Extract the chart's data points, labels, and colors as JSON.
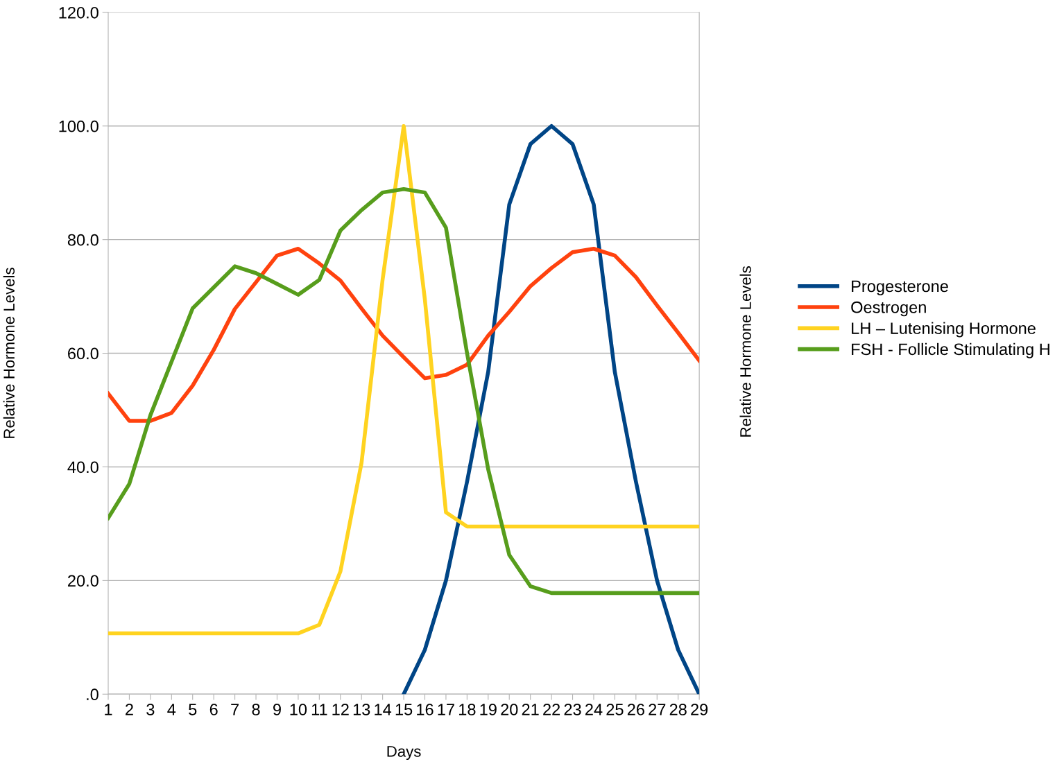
{
  "chart_data": {
    "type": "line",
    "xlabel": "Days",
    "ylabel": "Relative Hormone Levels",
    "y2label": "Relative Hormone Levels",
    "categories": [
      "1",
      "2",
      "3",
      "4",
      "5",
      "6",
      "7",
      "8",
      "9",
      "10",
      "11",
      "12",
      "13",
      "14",
      "15",
      "16",
      "17",
      "18",
      "19",
      "20",
      "21",
      "22",
      "23",
      "24",
      "25",
      "26",
      "27",
      "28",
      "29"
    ],
    "series": [
      {
        "name": "Progesterone",
        "color": "#004586",
        "values": [
          null,
          null,
          null,
          null,
          null,
          null,
          null,
          null,
          null,
          null,
          null,
          null,
          null,
          null,
          0,
          7.8,
          20.0,
          37.4,
          56.7,
          86.2,
          96.8,
          100,
          96.8,
          86.2,
          56.7,
          37.4,
          20.0,
          7.8,
          0
        ]
      },
      {
        "name": "Oestrogen",
        "color": "#ff420e",
        "values": [
          52.9,
          48.1,
          48.1,
          49.5,
          54.3,
          60.6,
          67.8,
          72.5,
          77.2,
          78.4,
          75.8,
          72.8,
          67.9,
          63.1,
          59.3,
          55.6,
          56.2,
          58.0,
          63.1,
          67.3,
          71.8,
          75.0,
          77.8,
          78.4,
          77.2,
          73.4,
          68.4,
          63.6,
          58.7
        ]
      },
      {
        "name": "LH – Lutenising Hormone",
        "color": "#ffd320",
        "values": [
          10.7,
          10.7,
          10.7,
          10.7,
          10.7,
          10.7,
          10.7,
          10.7,
          10.7,
          10.7,
          12.2,
          21.6,
          40.7,
          73.0,
          100,
          69.5,
          32.0,
          29.5,
          29.5,
          29.5,
          29.5,
          29.5,
          29.5,
          29.5,
          29.5,
          29.5,
          29.5,
          29.5,
          29.5
        ]
      },
      {
        "name": "FSH - Follicle Stimulating H",
        "color": "#579d1c",
        "values": [
          31.0,
          37.0,
          49.1,
          58.5,
          67.9,
          71.6,
          75.3,
          74.1,
          72.2,
          70.3,
          72.9,
          81.6,
          85.2,
          88.3,
          88.9,
          88.3,
          82.1,
          60.0,
          39.6,
          24.5,
          19.0,
          17.8,
          17.8,
          17.8,
          17.8,
          17.8,
          17.8,
          17.8,
          17.8
        ]
      }
    ],
    "ylim": [
      0,
      120
    ],
    "yticks": [
      {
        "value": 0,
        "label": ".0"
      },
      {
        "value": 20,
        "label": "20.0"
      },
      {
        "value": 40,
        "label": "40.0"
      },
      {
        "value": 60,
        "label": "60.0"
      },
      {
        "value": 80,
        "label": "80.0"
      },
      {
        "value": 100,
        "label": "100.0"
      },
      {
        "value": 120,
        "label": "120.0"
      }
    ],
    "grid": "y",
    "legend": "right",
    "marker": "none",
    "line_style": "solid"
  }
}
